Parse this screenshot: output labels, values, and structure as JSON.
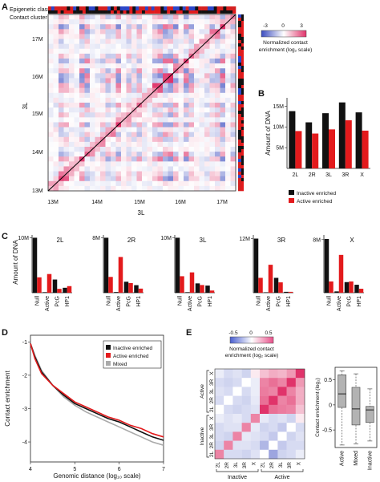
{
  "colors": {
    "inactive": "#111111",
    "active": "#e31a1c",
    "mixed": "#aaaaaa",
    "heat_neg": "#3b4cc0",
    "heat_pos": "#e0336a"
  },
  "panels": {
    "A": {
      "letter": "A",
      "track_labels": [
        "Epigenetic class",
        "Contact cluster"
      ],
      "x_ticks": [
        "13M",
        "14M",
        "15M",
        "16M",
        "17M"
      ],
      "y_ticks": [
        "17M",
        "16M",
        "15M",
        "14M",
        "13M"
      ],
      "xlabel": "3L",
      "ylabel": "3L",
      "colorbar": {
        "min_label": "-3",
        "mid_label": "0",
        "max_label": "3",
        "title_1": "Normalized contact",
        "title_2": "enrichment (log₂ scale)"
      }
    },
    "B": {
      "letter": "B"
    },
    "C": {
      "letter": "C"
    },
    "D": {
      "letter": "D"
    },
    "E": {
      "letter": "E",
      "colorbar": {
        "min_label": "-0.5",
        "mid_label": "0",
        "max_label": "0.5",
        "title_1": "Normalized contact",
        "title_2": "enrichment (log₂ scale)"
      },
      "row_labels": [
        "X",
        "3R",
        "3L",
        "2R",
        "2L",
        "X",
        "3R",
        "3L",
        "2R",
        "2L"
      ],
      "col_labels": [
        "2L",
        "2R",
        "3L",
        "3R",
        "X",
        "2L",
        "2R",
        "3L",
        "3R",
        "X"
      ],
      "group_labels_y": [
        "Active",
        "Inactive"
      ],
      "group_labels_x": [
        "Inactive",
        "Active"
      ]
    }
  },
  "chart_data": [
    {
      "type": "bar",
      "panel": "B",
      "categories": [
        "2L",
        "2R",
        "3L",
        "3R",
        "X"
      ],
      "series": [
        {
          "name": "Inactive enriched",
          "values": [
            13.8,
            11.1,
            13.3,
            15.9,
            13.5
          ]
        },
        {
          "name": "Active enriched",
          "values": [
            9.0,
            8.4,
            9.4,
            11.6,
            9.1
          ]
        }
      ],
      "ylabel": "Amount of DNA",
      "y_ticks": [
        "5M",
        "10M",
        "15M"
      ],
      "ylim": [
        0,
        17
      ],
      "legend": "bottom"
    },
    {
      "type": "bar",
      "panel": "C",
      "ylabel": "Amount of DNA",
      "categories": [
        "Null",
        "Active",
        "PcG",
        "HP1"
      ],
      "subplots": [
        {
          "title": "2L",
          "y_top_label": "10M",
          "ymax": 10.5,
          "inactive": [
            10.0,
            0.1,
            2.4,
            0.9
          ],
          "active": [
            2.8,
            3.4,
            0.7,
            1.2
          ]
        },
        {
          "title": "2R",
          "y_top_label": "8M",
          "ymax": 8.4,
          "inactive": [
            8.0,
            0.1,
            1.6,
            1.1
          ],
          "active": [
            2.3,
            5.2,
            1.4,
            0.6
          ]
        },
        {
          "title": "3L",
          "y_top_label": "10M",
          "ymax": 10.5,
          "inactive": [
            10.0,
            0.1,
            1.7,
            1.3
          ],
          "active": [
            3.0,
            3.7,
            1.4,
            0.4
          ]
        },
        {
          "title": "3R",
          "y_top_label": "12M",
          "ymax": 12.8,
          "inactive": [
            12.0,
            0.1,
            3.3,
            0.2
          ],
          "active": [
            3.3,
            6.2,
            2.3,
            0.2
          ]
        },
        {
          "title": "X",
          "y_top_label": "8M",
          "ymax": 8.7,
          "inactive": [
            8.1,
            0.2,
            1.6,
            1.2
          ],
          "active": [
            1.7,
            5.7,
            1.7,
            0.6
          ]
        }
      ]
    },
    {
      "type": "line",
      "panel": "D",
      "xlabel": "Genomic distance (log₁₀ scale)",
      "ylabel": "Contact enrichment",
      "xlim": [
        4,
        7
      ],
      "ylim": [
        -4.6,
        -0.8
      ],
      "x_ticks": [
        "4",
        "5",
        "6",
        "7"
      ],
      "y_ticks": [
        "-1",
        "-2",
        "-3",
        "-4"
      ],
      "legend": "top-right",
      "series": [
        {
          "name": "Inactive enriched",
          "x": [
            4.0,
            4.1,
            4.25,
            4.5,
            4.75,
            5.0,
            5.25,
            5.5,
            5.75,
            6.0,
            6.25,
            6.5,
            6.75,
            7.0
          ],
          "y": [
            -1.05,
            -1.45,
            -1.9,
            -2.3,
            -2.6,
            -2.85,
            -3.0,
            -3.15,
            -3.3,
            -3.4,
            -3.55,
            -3.7,
            -3.85,
            -3.95
          ]
        },
        {
          "name": "Active enriched",
          "x": [
            4.0,
            4.1,
            4.25,
            4.5,
            4.75,
            5.0,
            5.25,
            5.5,
            5.75,
            6.0,
            6.25,
            6.5,
            6.75,
            7.0
          ],
          "y": [
            -1.05,
            -1.5,
            -1.95,
            -2.3,
            -2.55,
            -2.8,
            -2.95,
            -3.1,
            -3.25,
            -3.35,
            -3.5,
            -3.6,
            -3.75,
            -3.85
          ]
        },
        {
          "name": "Mixed",
          "x": [
            4.0,
            4.1,
            4.25,
            4.5,
            4.75,
            5.0,
            5.25,
            5.5,
            5.75,
            6.0,
            6.25,
            6.5,
            6.75,
            7.0
          ],
          "y": [
            -1.05,
            -1.4,
            -1.85,
            -2.3,
            -2.65,
            -2.9,
            -3.1,
            -3.25,
            -3.4,
            -3.55,
            -3.7,
            -3.85,
            -4.0,
            -4.1
          ]
        }
      ]
    },
    {
      "type": "heatmap",
      "panel": "E",
      "rows": [
        "X",
        "3R",
        "3L",
        "2R",
        "2L",
        "X",
        "3R",
        "3L",
        "2R",
        "2L"
      ],
      "cols": [
        "2L",
        "2R",
        "3L",
        "3R",
        "X",
        "2L",
        "2R",
        "3L",
        "3R",
        "X"
      ],
      "values": [
        [
          -0.05,
          -0.1,
          -0.08,
          -0.12,
          0.05,
          0.15,
          0.2,
          0.18,
          0.25,
          0.55
        ],
        [
          -0.1,
          -0.12,
          -0.1,
          0.0,
          -0.05,
          0.3,
          0.35,
          0.3,
          0.55,
          0.25
        ],
        [
          -0.08,
          -0.1,
          0.0,
          -0.1,
          -0.05,
          0.32,
          0.3,
          0.55,
          0.3,
          0.2
        ],
        [
          -0.1,
          0.0,
          -0.1,
          -0.12,
          -0.06,
          0.35,
          0.55,
          0.3,
          0.35,
          0.2
        ],
        [
          0.0,
          -0.1,
          -0.12,
          -0.1,
          -0.08,
          0.55,
          0.35,
          0.32,
          0.3,
          0.15
        ],
        [
          -0.05,
          -0.08,
          -0.06,
          -0.1,
          0.3,
          -0.06,
          -0.1,
          -0.08,
          -0.12,
          0.05
        ],
        [
          -0.1,
          -0.08,
          -0.08,
          0.3,
          -0.06,
          -0.12,
          -0.1,
          -0.15,
          0.0,
          -0.1
        ],
        [
          -0.1,
          -0.12,
          0.3,
          -0.06,
          -0.08,
          -0.1,
          -0.15,
          0.0,
          -0.12,
          -0.08
        ],
        [
          -0.12,
          0.3,
          -0.08,
          -0.08,
          -0.1,
          -0.2,
          0.0,
          -0.15,
          -0.1,
          -0.1
        ],
        [
          0.3,
          -0.1,
          -0.1,
          -0.12,
          -0.08,
          0.0,
          -0.25,
          -0.12,
          -0.1,
          -0.05
        ]
      ],
      "clim": [
        -0.5,
        0.5
      ]
    },
    {
      "type": "box",
      "panel": "E",
      "categories": [
        "Active",
        "Mixed",
        "Inactive"
      ],
      "ylabel": "Contact enrichment (log₂)",
      "y_ticks": [
        "0.5",
        "0",
        "-0.5"
      ],
      "ylim": [
        -0.85,
        0.75
      ],
      "boxes": [
        {
          "min": -0.8,
          "q1": -0.05,
          "median": 0.22,
          "q3": 0.6,
          "max": 0.68
        },
        {
          "min": -0.78,
          "q1": -0.4,
          "median": -0.08,
          "q3": 0.35,
          "max": 0.62
        },
        {
          "min": -0.72,
          "q1": -0.35,
          "median": -0.1,
          "q3": -0.03,
          "max": 0.32
        }
      ]
    }
  ]
}
